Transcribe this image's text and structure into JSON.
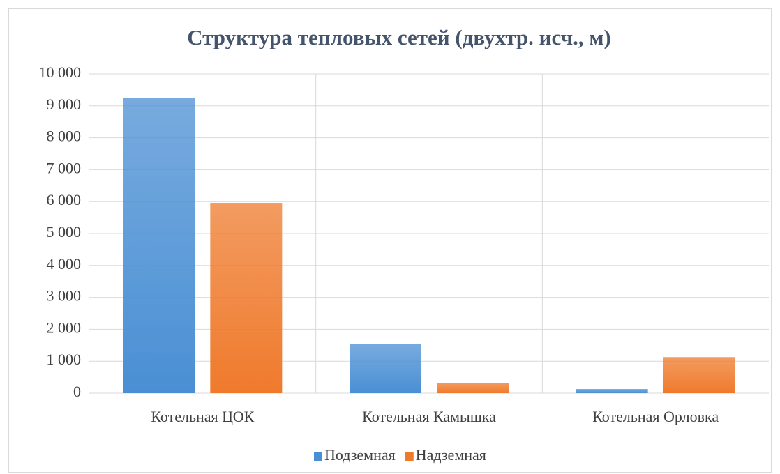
{
  "chart_data": {
    "type": "bar",
    "title": "Структура тепловых сетей (двухтр. исч., м)",
    "categories": [
      "Котельная ЦОК",
      "Котельная Камышка",
      "Котельная Орловка"
    ],
    "series": [
      {
        "name": "Подземная",
        "color": "#4a8fd4",
        "values": [
          9240,
          1530,
          130
        ]
      },
      {
        "name": "Надземная",
        "color": "#ef7a2c",
        "values": [
          5960,
          320,
          1130
        ]
      }
    ],
    "ylim": [
      0,
      10000
    ],
    "yticks": [
      0,
      {
        "value": 1000,
        "label": "1 000"
      },
      {
        "value": 2000,
        "label": "2 000"
      },
      {
        "value": 3000,
        "label": "3 000"
      },
      {
        "value": 4000,
        "label": "4 000"
      },
      {
        "value": 5000,
        "label": "5 000"
      },
      {
        "value": 6000,
        "label": "6 000"
      },
      {
        "value": 7000,
        "label": "7 000"
      },
      {
        "value": 8000,
        "label": "8 000"
      },
      {
        "value": 9000,
        "label": "9 000"
      },
      {
        "value": 10000,
        "label": "10 000"
      }
    ],
    "grid": true,
    "legend": "bottom"
  }
}
